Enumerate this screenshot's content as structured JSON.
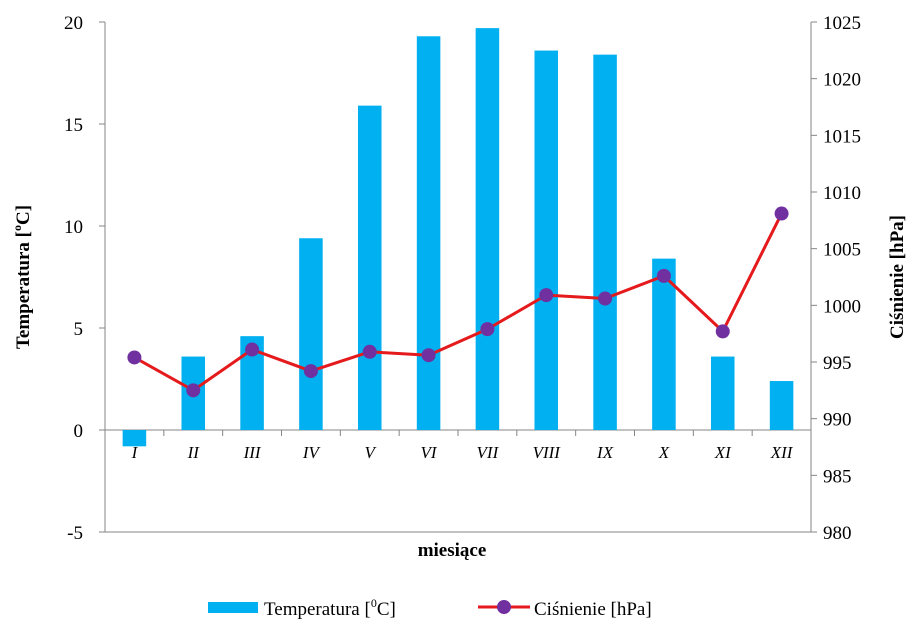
{
  "chart_data": {
    "type": "bar",
    "title": "",
    "xlabel": "miesiące",
    "ylabel": "Temperatura  [°C]",
    "ylabel_parts": [
      "Temperatura  [",
      "o",
      "C]"
    ],
    "y2label": "Ciśnienie  [hPa]",
    "categories": [
      "I",
      "II",
      "III",
      "IV",
      "V",
      "VI",
      "VII",
      "VIII",
      "IX",
      "X",
      "XI",
      "XII"
    ],
    "ylim": [
      -5,
      20
    ],
    "yticks": [
      "-5",
      "0",
      "5",
      "10",
      "15",
      "20"
    ],
    "y2lim": [
      980,
      1025
    ],
    "y2ticks": [
      "980",
      "985",
      "990",
      "995",
      "1000",
      "1005",
      "1010",
      "1015",
      "1020",
      "1025"
    ],
    "grid": false,
    "legend_position": "bottom",
    "series": [
      {
        "name": "Temperatura [°C]",
        "name_parts": [
          "Temperatura [",
          "0",
          "C]"
        ],
        "type": "bar",
        "axis": "left",
        "color": "#00B0F0",
        "values": [
          -0.8,
          3.6,
          4.6,
          9.4,
          15.9,
          19.3,
          19.7,
          18.6,
          18.4,
          8.4,
          3.6,
          2.4
        ]
      },
      {
        "name": "Ciśnienie [hPa]",
        "type": "line",
        "axis": "right",
        "color": "#E41A1C",
        "marker_color": "#7030A0",
        "values": [
          995.4,
          992.5,
          996.1,
          994.2,
          995.9,
          995.6,
          997.9,
          1000.9,
          1000.6,
          1002.6,
          997.7,
          1008.1
        ]
      }
    ]
  }
}
